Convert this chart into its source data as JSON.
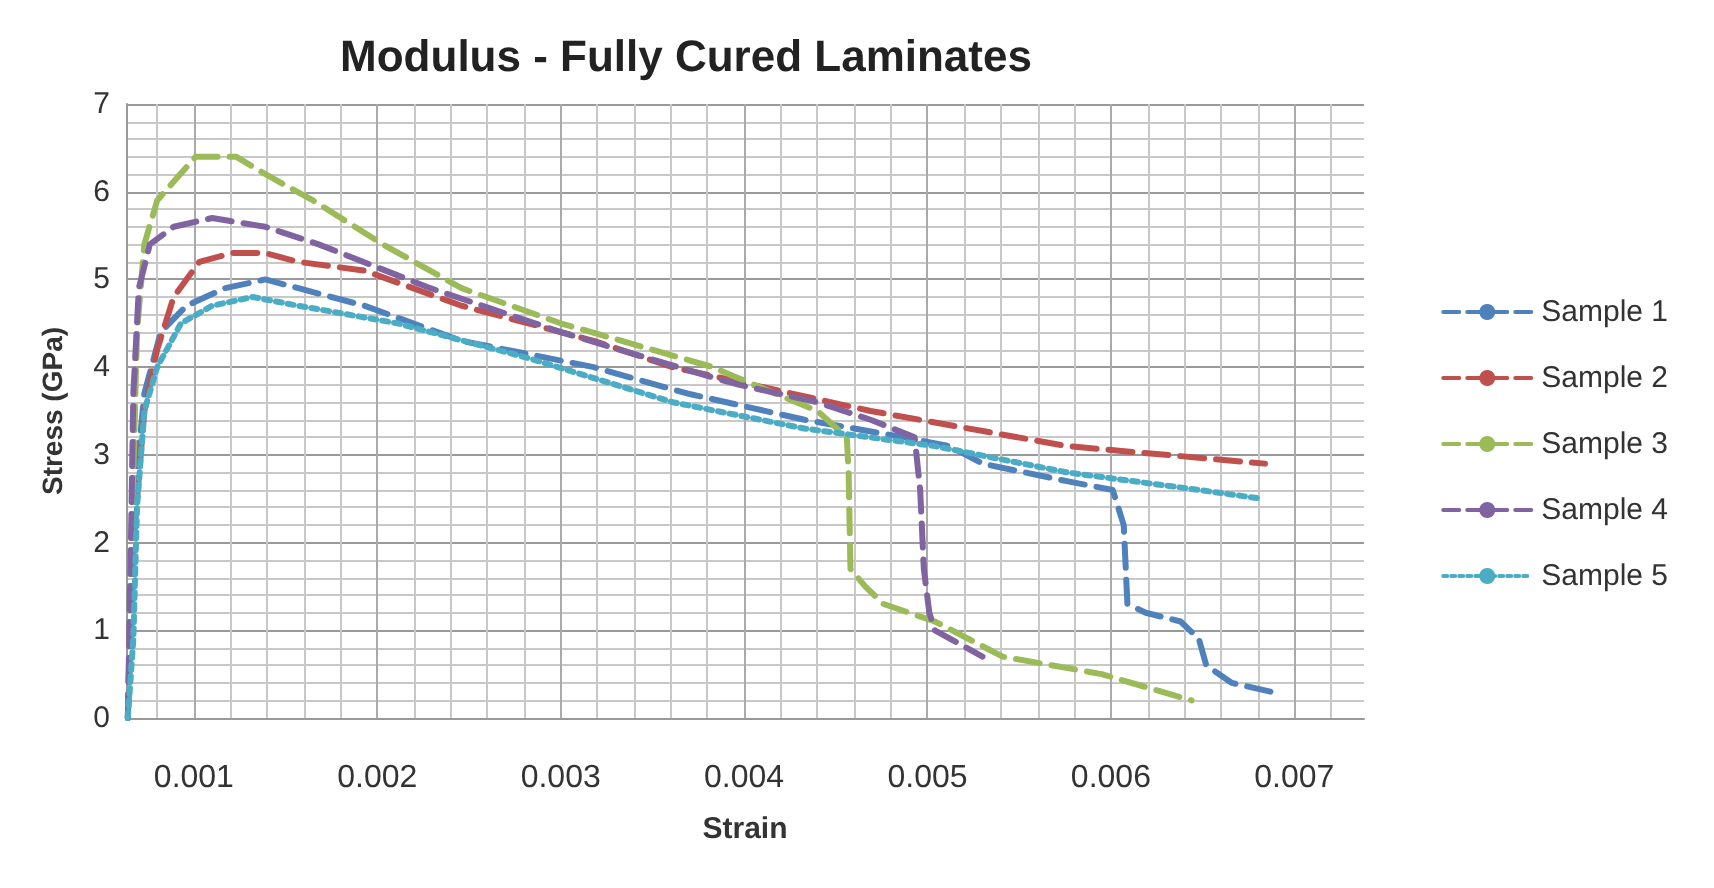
{
  "chart_data": {
    "type": "line",
    "title": "Modulus - Fully Cured Laminates",
    "xlabel": "Strain",
    "ylabel": "Stress (GPa)",
    "xlim": [
      0.00063,
      0.00738
    ],
    "xticks": [
      0.001,
      0.002,
      0.003,
      0.004,
      0.005,
      0.006,
      0.007
    ],
    "ylim": [
      0,
      7
    ],
    "yticks": [
      0,
      1,
      2,
      3,
      4,
      5,
      6,
      7
    ],
    "grid": true,
    "legend": "right",
    "marker": "none",
    "series": [
      {
        "name": "Sample 1",
        "color": "#4f81bd",
        "line_style": "dashed",
        "x": [
          0.00064,
          0.00067,
          0.00073,
          0.00082,
          0.00096,
          0.00117,
          0.00139,
          0.00157,
          0.00193,
          0.00246,
          0.00318,
          0.00369,
          0.00433,
          0.00487,
          0.00512,
          0.0053,
          0.00576,
          0.00601,
          0.00607,
          0.00609,
          0.00619,
          0.00638,
          0.00648,
          0.00652,
          0.00666,
          0.00687
        ],
        "values": [
          0,
          2.4,
          3.7,
          4.4,
          4.7,
          4.9,
          5.0,
          4.9,
          4.7,
          4.3,
          4.0,
          3.7,
          3.4,
          3.2,
          3.1,
          2.9,
          2.7,
          2.6,
          2.2,
          1.3,
          1.2,
          1.1,
          0.9,
          0.6,
          0.4,
          0.3
        ]
      },
      {
        "name": "Sample 2",
        "color": "#c0504d",
        "line_style": "dashed",
        "x": [
          0.00064,
          0.00067,
          0.00073,
          0.0008,
          0.00089,
          0.00103,
          0.00121,
          0.00139,
          0.00157,
          0.00193,
          0.00246,
          0.00318,
          0.00361,
          0.00469,
          0.00576,
          0.00684
        ],
        "values": [
          0,
          2.0,
          3.5,
          4.2,
          4.8,
          5.2,
          5.3,
          5.3,
          5.2,
          5.1,
          4.7,
          4.3,
          4.0,
          3.5,
          3.1,
          2.9
        ]
      },
      {
        "name": "Sample 3",
        "color": "#9bbb59",
        "line_style": "dashed",
        "x": [
          0.00064,
          0.00066,
          0.00069,
          0.00073,
          0.0008,
          0.00101,
          0.00123,
          0.00139,
          0.00165,
          0.00203,
          0.00246,
          0.003,
          0.00383,
          0.00394,
          0.0044,
          0.00456,
          0.00457,
          0.00458,
          0.00466,
          0.00476,
          0.00504,
          0.00541,
          0.00595,
          0.00644
        ],
        "values": [
          0,
          2.0,
          4.4,
          5.4,
          5.9,
          6.4,
          6.4,
          6.2,
          5.9,
          5.4,
          4.9,
          4.5,
          4.0,
          3.9,
          3.5,
          3.2,
          2.8,
          1.7,
          1.5,
          1.3,
          1.1,
          0.7,
          0.5,
          0.2
        ]
      },
      {
        "name": "Sample 4",
        "color": "#8064a2",
        "line_style": "dashed",
        "x": [
          0.00064,
          0.00066,
          0.00067,
          0.0007,
          0.00076,
          0.00089,
          0.0011,
          0.00139,
          0.00168,
          0.00229,
          0.003,
          0.0038,
          0.00397,
          0.0044,
          0.00469,
          0.00493,
          0.00496,
          0.00498,
          0.00501,
          0.00504,
          0.0053
        ],
        "values": [
          0,
          2.4,
          3.7,
          4.9,
          5.4,
          5.6,
          5.7,
          5.6,
          5.4,
          4.9,
          4.4,
          3.9,
          3.8,
          3.6,
          3.4,
          3.2,
          2.6,
          1.7,
          1.2,
          1.0,
          0.7
        ]
      },
      {
        "name": "Sample 5",
        "color": "#4bacc6",
        "line_style": "dotted",
        "x": [
          0.00064,
          0.00067,
          0.00069,
          0.00073,
          0.0008,
          0.00093,
          0.0011,
          0.00132,
          0.00157,
          0.00211,
          0.00283,
          0.00361,
          0.00433,
          0.00504,
          0.00576,
          0.00648,
          0.00682
        ],
        "values": [
          0,
          0.9,
          2.4,
          3.5,
          4.0,
          4.5,
          4.7,
          4.8,
          4.7,
          4.5,
          4.1,
          3.6,
          3.3,
          3.1,
          2.8,
          2.6,
          2.5
        ]
      }
    ]
  }
}
